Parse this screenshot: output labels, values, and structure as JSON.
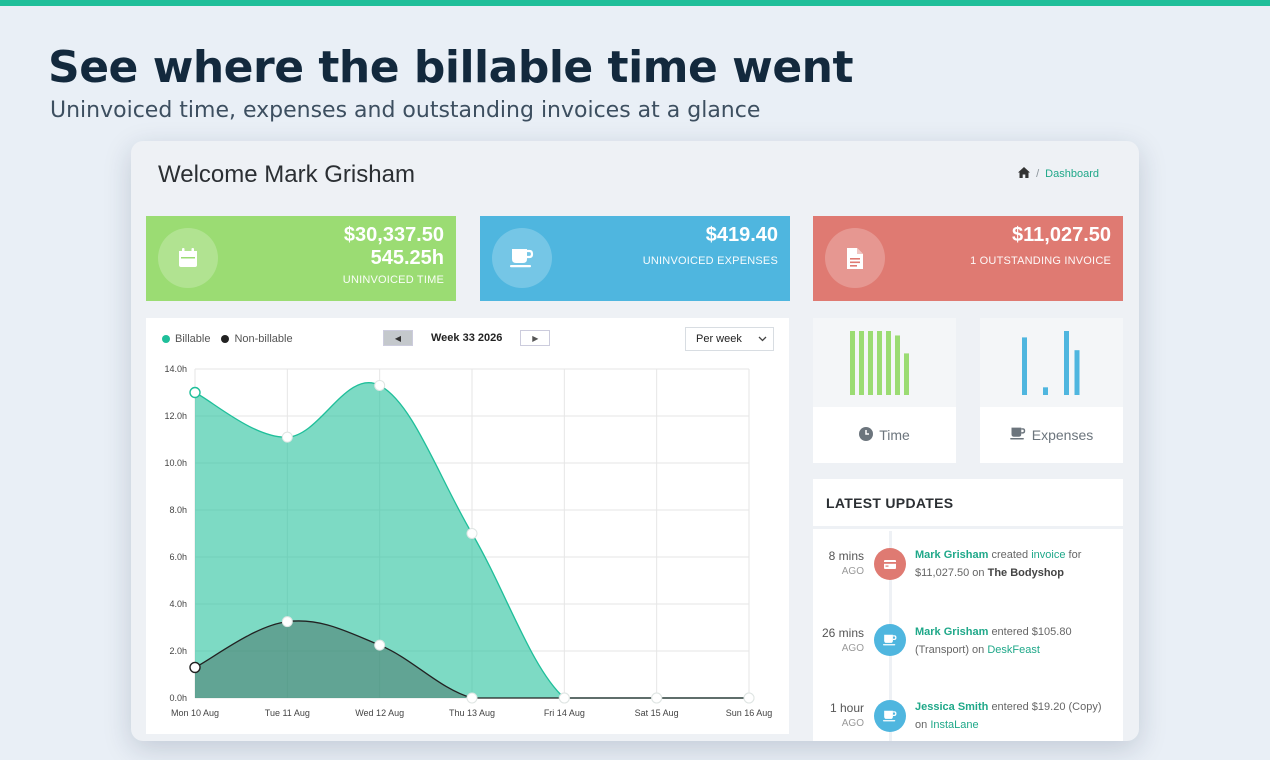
{
  "hero": {
    "title": "See where the billable time went",
    "subtitle": "Uninvoiced time, expenses and outstanding invoices at a glance"
  },
  "dashboard": {
    "welcome": "Welcome Mark Grisham",
    "breadcrumb": {
      "separator": "/",
      "current": "Dashboard"
    }
  },
  "stats": {
    "time": {
      "amount": "$30,337.50",
      "hours": "545.25h",
      "label": "UNINVOICED TIME",
      "icon": "calendar-icon",
      "color": "#9bdc73"
    },
    "expenses": {
      "amount": "$419.40",
      "label": "UNINVOICED EXPENSES",
      "icon": "cup-icon",
      "color": "#4fb6df"
    },
    "invoices": {
      "amount": "$11,027.50",
      "label": "1 OUTSTANDING INVOICE",
      "icon": "document-icon",
      "color": "#df7a72"
    }
  },
  "chart_controls": {
    "legend_billable": "Billable",
    "legend_nonbillable": "Non-billable",
    "week_label": "Week 33 2026",
    "period_value": "Per week"
  },
  "chart_data": {
    "type": "area",
    "categories": [
      "Mon 10 Aug",
      "Tue 11 Aug",
      "Wed 12 Aug",
      "Thu 13 Aug",
      "Fri 14 Aug",
      "Sat 15 Aug",
      "Sun 16 Aug"
    ],
    "series": [
      {
        "name": "Billable",
        "values": [
          13.0,
          11.1,
          13.3,
          7.0,
          0,
          0,
          0
        ],
        "color": "#1fbf9a"
      },
      {
        "name": "Non-billable",
        "values": [
          1.3,
          3.25,
          2.25,
          0,
          0,
          0,
          0
        ],
        "color": "#222222"
      }
    ],
    "ylim": [
      0,
      14
    ],
    "yticks": [
      "0.0h",
      "2.0h",
      "4.0h",
      "6.0h",
      "8.0h",
      "10.0h",
      "12.0h",
      "14.0h"
    ],
    "grid": true,
    "legend": "top-left"
  },
  "mini_cards": {
    "time": {
      "label": "Time",
      "icon": "clock-icon",
      "bars": [
        1,
        1,
        1,
        1,
        1,
        0.93,
        0.65
      ],
      "color": "#9bdc73"
    },
    "expenses": {
      "label": "Expenses",
      "icon": "cup-icon",
      "bars": [
        0.9,
        0,
        0.12,
        0,
        1,
        0.7
      ],
      "color": "#4fb6df"
    }
  },
  "updates": {
    "title": "LATEST UPDATES",
    "items": [
      {
        "time": "8 mins",
        "ago": "AGO",
        "user": "Mark Grisham",
        "action": "created",
        "link": "invoice",
        "rest": "for $11,027.50 on",
        "target": "The Bodyshop",
        "icon": "credit-card-icon",
        "color": "#df7a72"
      },
      {
        "time": "26 mins",
        "ago": "AGO",
        "user": "Mark Grisham",
        "action": "entered $105.80 (Transport) on",
        "link": "DeskFeast",
        "icon": "cup-icon",
        "color": "#4fb6df"
      },
      {
        "time": "1 hour",
        "ago": "AGO",
        "user": "Jessica Smith",
        "action": "entered $19.20 (Copy) on",
        "link": "InstaLane",
        "icon": "cup-icon",
        "color": "#4fb6df"
      }
    ]
  }
}
